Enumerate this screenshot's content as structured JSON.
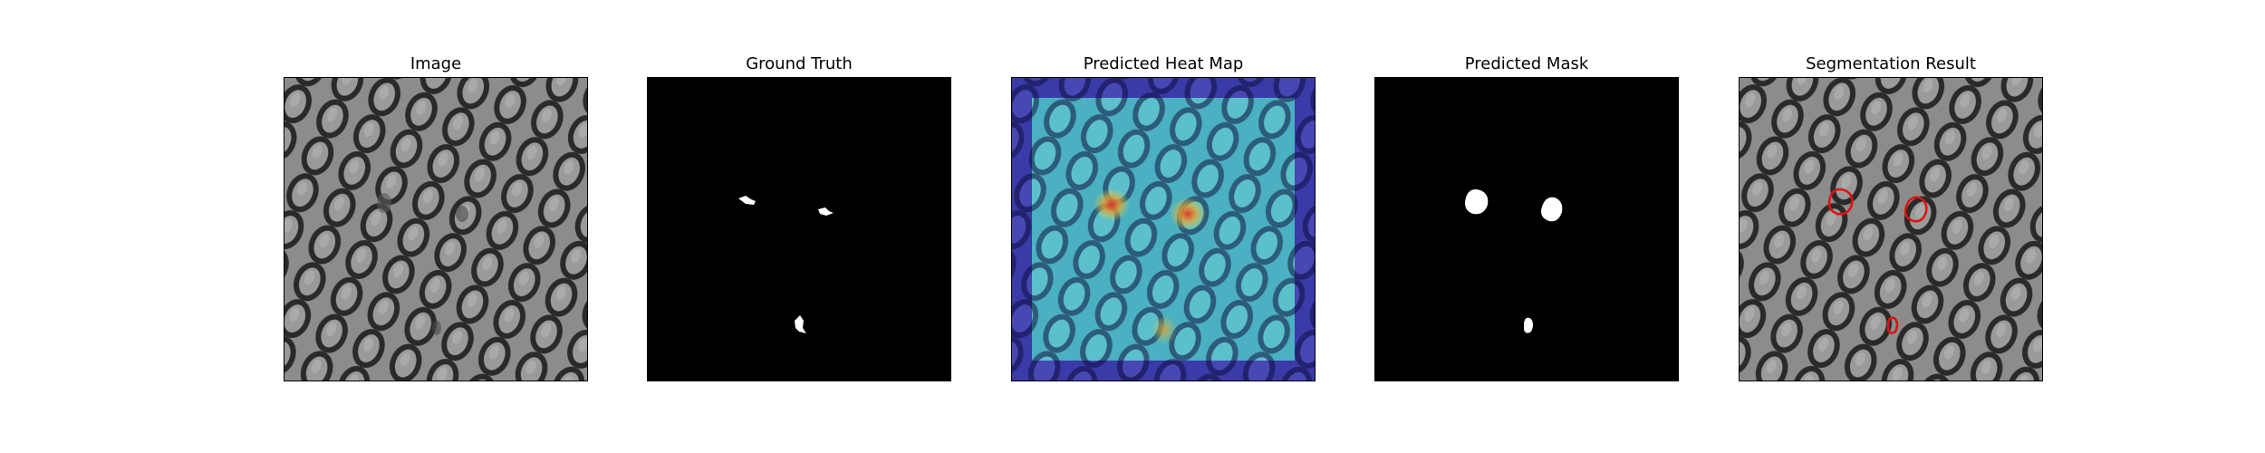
{
  "figure": {
    "panels": [
      {
        "title": "Image",
        "content": "fabric-texture"
      },
      {
        "title": "Ground Truth",
        "content": "ground-truth-mask"
      },
      {
        "title": "Predicted Heat Map",
        "content": "heatmap-overlay"
      },
      {
        "title": "Predicted Mask",
        "content": "predicted-mask"
      },
      {
        "title": "Segmentation Result",
        "content": "segmentation-overlay"
      }
    ],
    "colors": {
      "background": "#ffffff",
      "texture_base": "#8a8a8a",
      "texture_line": "#2a2a2a",
      "mask_bg": "#000000",
      "mask_fg": "#ffffff",
      "heat_low": "#2a2a9a",
      "heat_mid": "#4ab8c8",
      "heat_high": "#e0302a",
      "contour": "#e01010"
    }
  }
}
